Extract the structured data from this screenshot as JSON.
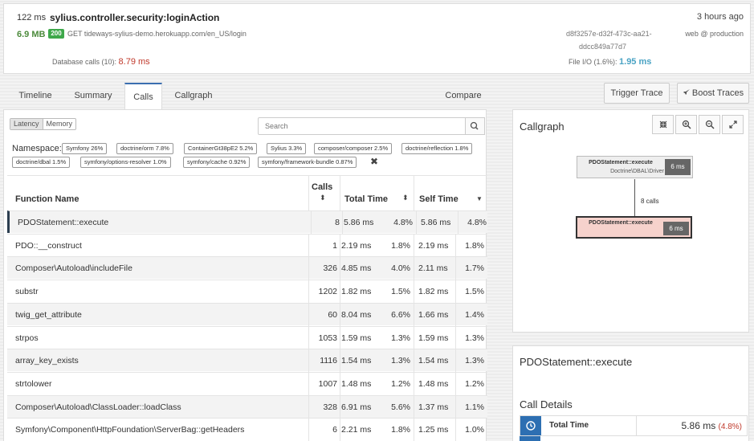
{
  "header": {
    "duration": "122 ms",
    "controller": "sylius.controller.security:loginAction",
    "time_ago": "3 hours ago",
    "memory": "6.9 MB",
    "status_code": "200",
    "request": "GET tideways-sylius-demo.herokuapp.com/en_US/login",
    "trace_id_line1": "d8f3257e-d32f-473c-aa21-",
    "trace_id_line2": "ddcc849a77d7",
    "environment": "web @ production",
    "db_calls_label": "Database calls (10): ",
    "db_calls_value": "8.79 ms",
    "file_io_label": "File I/O (1.6%): ",
    "file_io_value": "1.95 ms"
  },
  "tabs": [
    {
      "label": "Timeline"
    },
    {
      "label": "Summary"
    },
    {
      "label": "Calls",
      "active": true
    },
    {
      "label": "Callgraph"
    },
    {
      "label": "Compare"
    }
  ],
  "actions": {
    "trigger_trace": "Trigger Trace",
    "boost_traces": "Boost Traces"
  },
  "calls": {
    "mode_options": [
      "Latency",
      "Memory"
    ],
    "search_placeholder": "Search",
    "namespace_label": "Namespace:",
    "namespaces": [
      "Symfony 26%",
      "doctrine/orm 7.8%",
      "ContainerGt38pE2 5.2%",
      "Sylius 3.3%",
      "composer/composer 2.5%",
      "doctrine/reflection 1.8%",
      "doctrine/dbal 1.5%",
      "symfony/options-resolver 1.0%",
      "symfony/cache 0.92%",
      "symfony/framework-bundle 0.87%"
    ],
    "columns": {
      "function": "Function Name",
      "calls": "Calls",
      "total": "Total Time",
      "self": "Self Time"
    },
    "rows": [
      {
        "name": "PDOStatement::execute",
        "calls": "8",
        "total": "5.86 ms",
        "total_pct": "4.8%",
        "self": "5.86 ms",
        "self_pct": "4.8%"
      },
      {
        "name": "PDO::__construct",
        "calls": "1",
        "total": "2.19 ms",
        "total_pct": "1.8%",
        "self": "2.19 ms",
        "self_pct": "1.8%"
      },
      {
        "name": "Composer\\Autoload\\includeFile",
        "calls": "326",
        "total": "4.85 ms",
        "total_pct": "4.0%",
        "self": "2.11 ms",
        "self_pct": "1.7%"
      },
      {
        "name": "substr",
        "calls": "1202",
        "total": "1.82 ms",
        "total_pct": "1.5%",
        "self": "1.82 ms",
        "self_pct": "1.5%"
      },
      {
        "name": "twig_get_attribute",
        "calls": "60",
        "total": "8.04 ms",
        "total_pct": "6.6%",
        "self": "1.66 ms",
        "self_pct": "1.4%"
      },
      {
        "name": "strpos",
        "calls": "1053",
        "total": "1.59 ms",
        "total_pct": "1.3%",
        "self": "1.59 ms",
        "self_pct": "1.3%"
      },
      {
        "name": "array_key_exists",
        "calls": "1116",
        "total": "1.54 ms",
        "total_pct": "1.3%",
        "self": "1.54 ms",
        "self_pct": "1.3%"
      },
      {
        "name": "strtolower",
        "calls": "1007",
        "total": "1.48 ms",
        "total_pct": "1.2%",
        "self": "1.48 ms",
        "self_pct": "1.2%"
      },
      {
        "name": "Composer\\Autoload\\ClassLoader::loadClass",
        "calls": "328",
        "total": "6.91 ms",
        "total_pct": "5.6%",
        "self": "1.37 ms",
        "self_pct": "1.1%"
      },
      {
        "name": "Symfony\\Component\\HttpFoundation\\ServerBag::getHeaders",
        "calls": "6",
        "total": "2.21 ms",
        "total_pct": "1.8%",
        "self": "1.25 ms",
        "self_pct": "1.0%"
      }
    ]
  },
  "callgraph": {
    "title": "Callgraph",
    "parent_node": {
      "name": "PDOStatement::execute",
      "sub": "Doctrine\\DBAL\\Driver",
      "ms": "6 ms"
    },
    "edge_label": "8 calls",
    "child_node": {
      "name": "PDOStatement::execute",
      "ms": "6 ms"
    }
  },
  "details": {
    "title": "PDOStatement::execute",
    "subtitle": "Call Details",
    "total_label": "Total Time",
    "total_value": "5.86 ms",
    "total_pct": "(4.8%)"
  },
  "colors": {
    "accent": "#3b6fb0",
    "status_ok": "#3ea84a",
    "db_value": "#c0392b",
    "io_value": "#4aa3c4",
    "selected_node": "#f6d2cc"
  }
}
